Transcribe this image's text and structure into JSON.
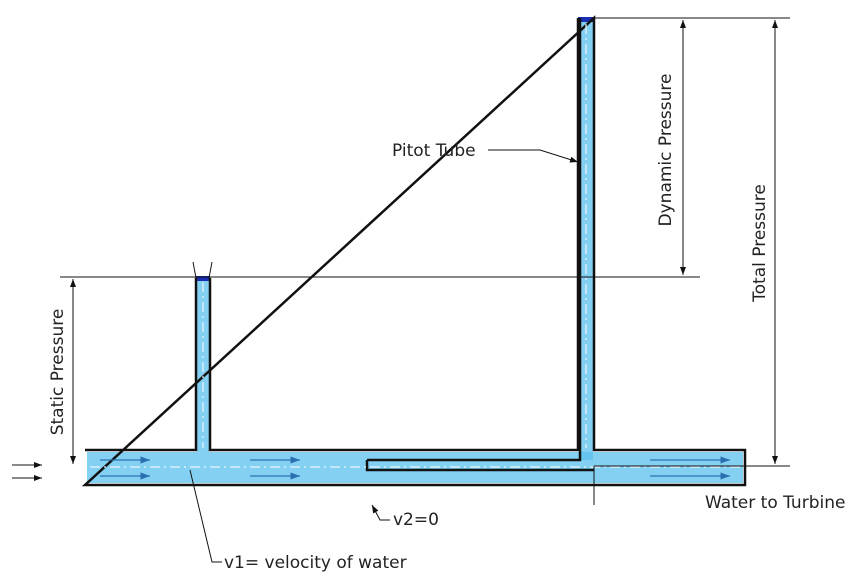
{
  "labels": {
    "pitot_tube": "Pitot Tube",
    "dynamic_pressure": "Dynamic Pressure",
    "total_pressure": "Total Pressure",
    "static_pressure": "Static Pressure",
    "v2": "v2=0",
    "v1": "v1= velocity of water",
    "outlet": "Water to Turbine"
  }
}
